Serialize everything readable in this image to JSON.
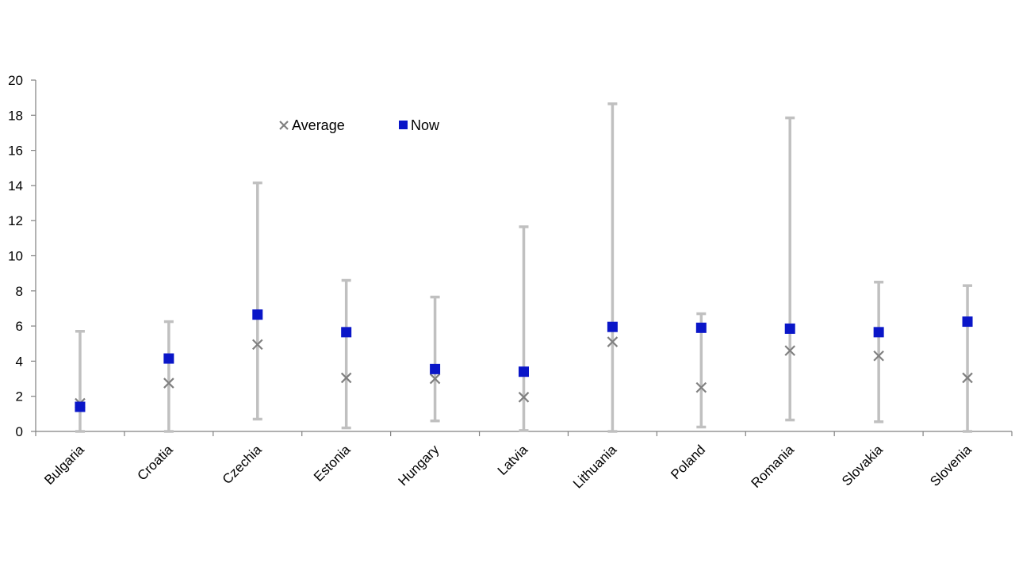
{
  "chart_data": {
    "type": "scatter",
    "title": "",
    "xlabel": "",
    "ylabel": "",
    "ylim": [
      0,
      20
    ],
    "yticks": [
      0,
      2,
      4,
      6,
      8,
      10,
      12,
      14,
      16,
      18,
      20
    ],
    "grid": false,
    "legend_position": "top-left",
    "categories": [
      "Bulgaria",
      "Croatia",
      "Czechia",
      "Estonia",
      "Hungary",
      "Latvia",
      "Lithuania",
      "Poland",
      "Romania",
      "Slovakia",
      "Slovenia"
    ],
    "range": {
      "min": [
        0.0,
        0.0,
        0.7,
        0.2,
        0.6,
        0.05,
        0.0,
        0.25,
        0.65,
        0.55,
        0.0
      ],
      "max": [
        5.7,
        6.25,
        14.15,
        8.6,
        7.65,
        11.65,
        18.65,
        6.7,
        17.85,
        8.5,
        8.3
      ]
    },
    "series": [
      {
        "name": "Average",
        "marker": "x",
        "color": "#808080",
        "values": [
          1.6,
          2.75,
          4.95,
          3.05,
          3.0,
          1.95,
          5.1,
          2.5,
          4.6,
          4.3,
          3.05
        ]
      },
      {
        "name": "Now",
        "marker": "square",
        "color": "#0a16c8",
        "values": [
          1.4,
          4.15,
          6.65,
          5.65,
          3.55,
          3.4,
          5.95,
          5.9,
          5.85,
          5.65,
          6.25
        ]
      }
    ],
    "whisker_color": "#c0c0c0",
    "axis_color": "#808080"
  }
}
